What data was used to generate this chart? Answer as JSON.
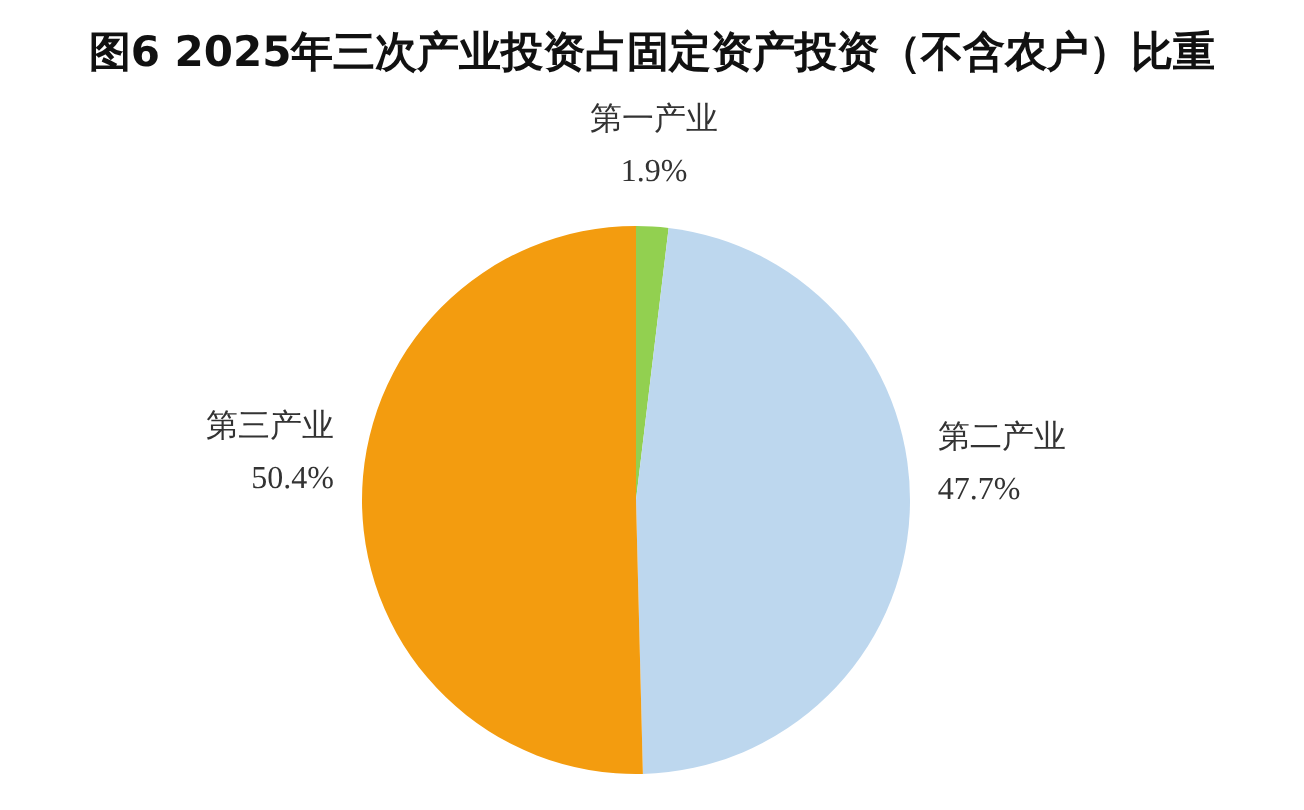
{
  "chart_data": {
    "type": "pie",
    "title": "图6 2025年三次产业投资占固定资产投资（不含农户）比重",
    "categories": [
      "第一产业",
      "第二产业",
      "第三产业"
    ],
    "values": [
      1.9,
      47.7,
      50.4
    ],
    "colors": [
      "#92d050",
      "#bdd7ee",
      "#f39c0f"
    ],
    "value_labels": [
      "1.9%",
      "47.7%",
      "50.4%"
    ]
  }
}
